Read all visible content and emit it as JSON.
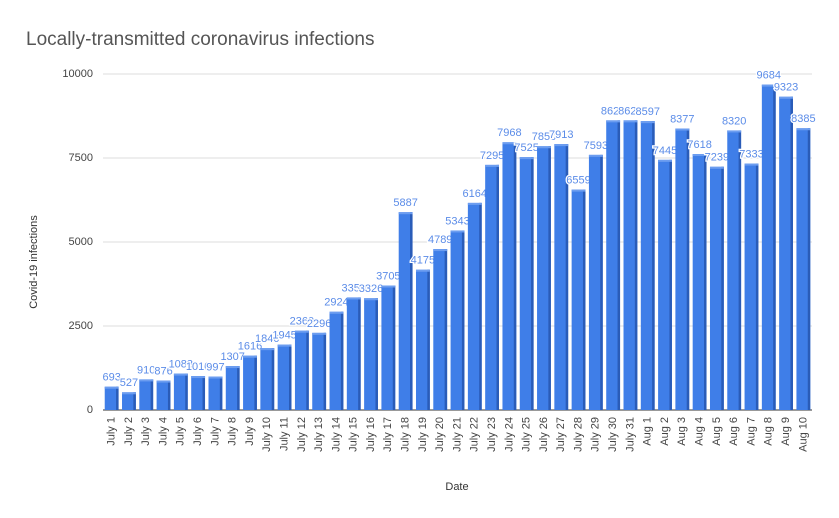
{
  "chart_data": {
    "type": "bar",
    "title": "Locally-transmitted coronavirus infections",
    "x_label": "Date",
    "y_label": "Covid-19 infections",
    "categories": [
      "July 1",
      "July 2",
      "July 3",
      "July 4",
      "July 5",
      "July 6",
      "July 7",
      "July 8",
      "July 9",
      "July 10",
      "July 11",
      "July 12",
      "July 13",
      "July 14",
      "July 15",
      "July 16",
      "July 17",
      "July 18",
      "July 19",
      "July 20",
      "July 21",
      "July 22",
      "July 23",
      "July 24",
      "July 25",
      "July 26",
      "July 27",
      "July 28",
      "July 29",
      "July 30",
      "July 31",
      "Aug 1",
      "Aug 2",
      "Aug 3",
      "Aug 4",
      "Aug 5",
      "Aug 6",
      "Aug 7",
      "Aug 8",
      "Aug 9",
      "Aug 10"
    ],
    "values": [
      693,
      527,
      910,
      876,
      1083,
      1010,
      997,
      1307,
      1616,
      1840,
      1945,
      2360,
      2296,
      2924,
      3350,
      3326,
      3705,
      5887,
      4175,
      4789,
      5343,
      6164,
      7295,
      7968,
      7525,
      7850,
      7913,
      6559,
      7593,
      8620,
      8620,
      8597,
      7445,
      8377,
      7618,
      7239,
      8320,
      7333,
      9684,
      9323,
      8385
    ],
    "color": "#3f7ee8",
    "ylim": [
      0,
      10000
    ],
    "yticks": [
      0,
      2500,
      5000,
      7500,
      10000
    ],
    "grid": true
  }
}
